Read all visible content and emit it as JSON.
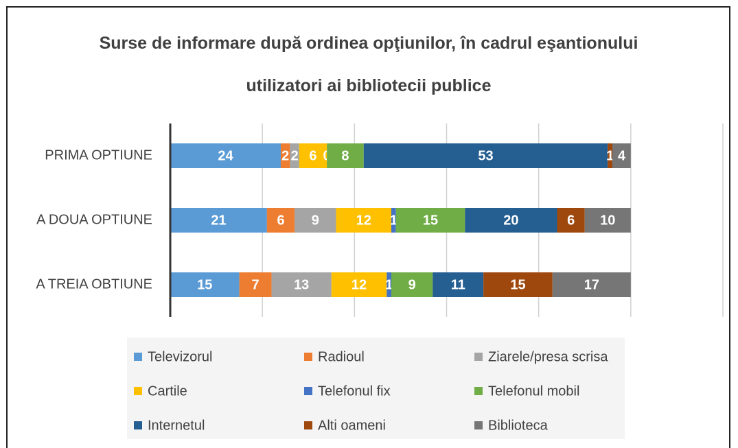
{
  "chart_data": {
    "type": "stacked-bar-horizontal",
    "title": "Surse de informare după ordinea opţiunilor, în cadrul eşantionului utilizatori ai bibliotecii publice",
    "categories": [
      "PRIMA OPTIUNE",
      "A DOUA OPTIUNE",
      "A TREIA OBTIUNE"
    ],
    "series": [
      {
        "name": "Televizorul",
        "color": "#5b9bd5",
        "values": [
          24,
          21,
          15
        ]
      },
      {
        "name": "Radioul",
        "color": "#ed7d31",
        "values": [
          2,
          6,
          7
        ]
      },
      {
        "name": "Ziarele/presa scrisa",
        "color": "#a5a5a5",
        "values": [
          2,
          9,
          13
        ]
      },
      {
        "name": "Cartile",
        "color": "#ffc000",
        "values": [
          6,
          12,
          12
        ]
      },
      {
        "name": "Telefonul fix",
        "color": "#4472c4",
        "values": [
          0,
          1,
          1
        ]
      },
      {
        "name": "Telefonul mobil",
        "color": "#70ad47",
        "values": [
          8,
          15,
          9
        ]
      },
      {
        "name": "Internetul",
        "color": "#255e91",
        "values": [
          53,
          20,
          11
        ]
      },
      {
        "name": "Alti oameni",
        "color": "#9e480e",
        "values": [
          1,
          6,
          15
        ]
      },
      {
        "name": "Biblioteca",
        "color": "#767676",
        "values": [
          4,
          10,
          17
        ]
      }
    ],
    "xlim": [
      0,
      120
    ],
    "xticks": [
      0,
      20,
      40,
      60,
      80,
      100,
      120
    ],
    "grid": true,
    "legend": "bottom"
  }
}
